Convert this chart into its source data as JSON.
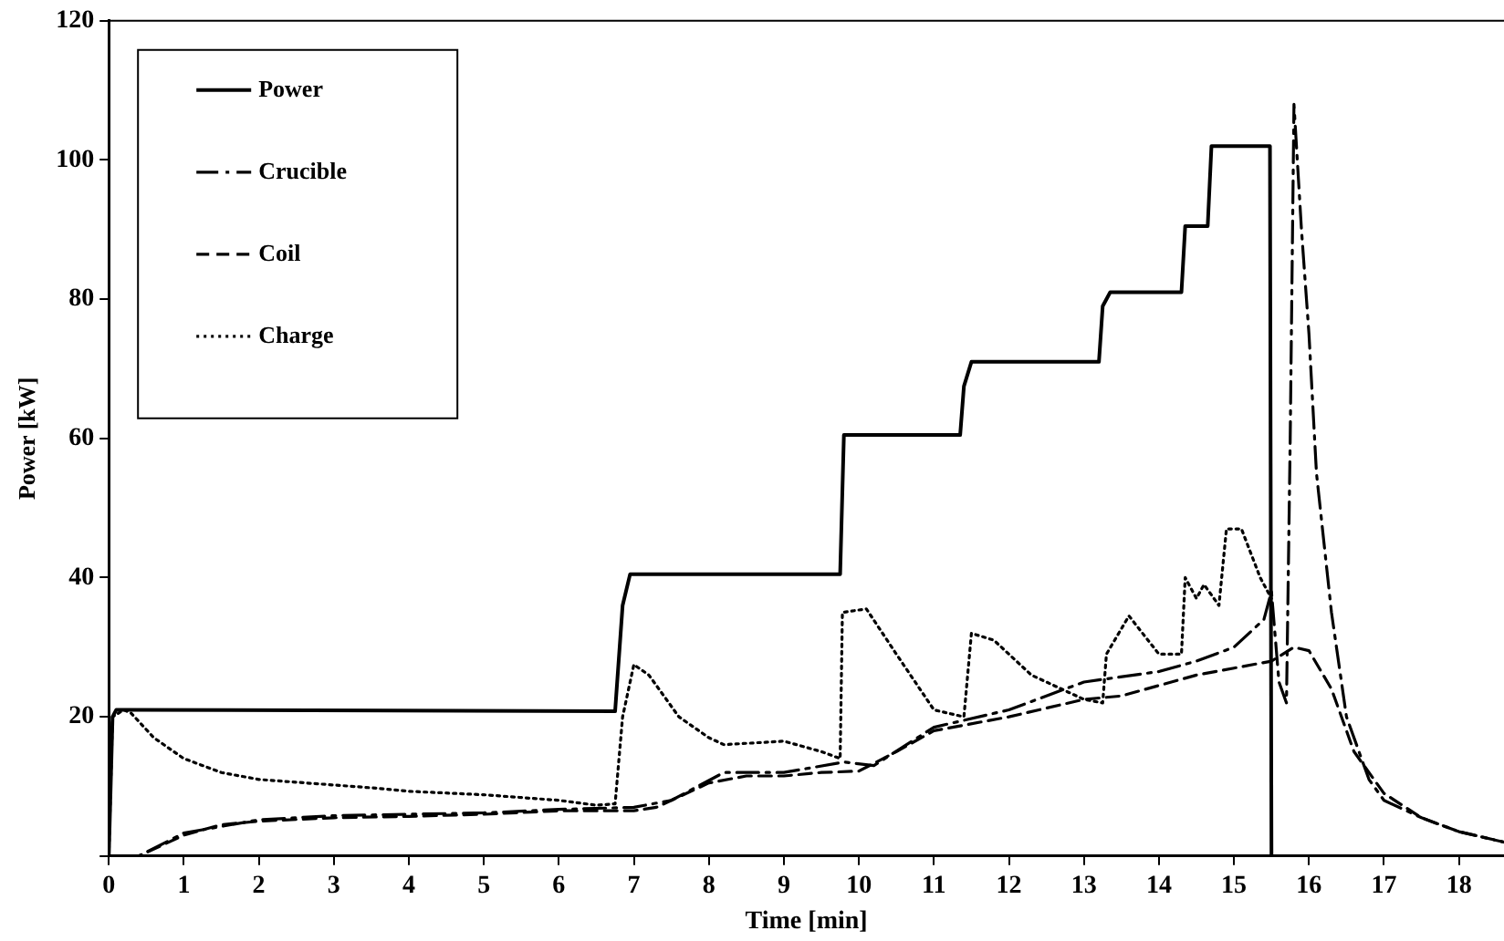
{
  "chart_data": {
    "type": "line",
    "xlabel": "Time [min]",
    "ylabel": "Power [kW]",
    "xlim": [
      0,
      18.6
    ],
    "ylim": [
      0,
      120
    ],
    "xticks": [
      0,
      1,
      2,
      3,
      4,
      5,
      6,
      7,
      8,
      9,
      10,
      11,
      12,
      13,
      14,
      15,
      16,
      17,
      18
    ],
    "yticks": [
      {
        "value": 0,
        "label": null
      },
      20,
      40,
      60,
      80,
      100,
      120
    ],
    "grid": false,
    "legend": "top left",
    "marker": "none",
    "series": [
      {
        "name": "Power",
        "color": "#000000",
        "line_style": "solid",
        "x": [
          0,
          0.05,
          0.1,
          0.25,
          6.75,
          6.85,
          6.95,
          9.75,
          9.8,
          11.35,
          11.4,
          11.5,
          13.2,
          13.25,
          13.35,
          14.3,
          14.35,
          14.65,
          14.7,
          15.48,
          15.5
        ],
        "values": [
          0,
          20,
          21,
          21,
          20.8,
          36,
          40.5,
          40.5,
          60.5,
          60.5,
          67.5,
          71,
          71,
          79,
          81,
          81,
          90.5,
          90.5,
          102,
          102,
          0
        ]
      },
      {
        "name": "Crucible",
        "color": "#000000",
        "line_style": "dashdot",
        "x": [
          0,
          0.4,
          1,
          2,
          3,
          4,
          5,
          6,
          7,
          7.5,
          8.2,
          9,
          9.8,
          10.2,
          11,
          12,
          13,
          14,
          14.5,
          15,
          15.4,
          15.5,
          15.6,
          15.7,
          15.75,
          15.8,
          15.9,
          16,
          16.1,
          16.3,
          16.5,
          16.8,
          17,
          17.5,
          18,
          18.6
        ],
        "values": [
          0,
          0,
          3.3,
          5.2,
          5.8,
          6,
          6.2,
          6.7,
          7,
          8,
          12,
          12,
          13.5,
          13,
          18.5,
          21,
          25,
          26.5,
          28,
          30,
          34,
          38,
          25,
          22,
          60,
          108,
          90,
          75,
          55,
          35,
          20,
          11,
          8,
          5.5,
          3.5,
          2
        ]
      },
      {
        "name": "Coil",
        "color": "#000000",
        "line_style": "dashed",
        "x": [
          0,
          0.4,
          1,
          1.5,
          2,
          3,
          4,
          5,
          6,
          7,
          7.3,
          8,
          8.5,
          9,
          9.5,
          10,
          10.5,
          11,
          12,
          13,
          13.5,
          14,
          14.5,
          15,
          15.5,
          15.8,
          16,
          16.3,
          16.6,
          17,
          17.5,
          18,
          18.6
        ],
        "values": [
          0,
          0,
          3,
          4.5,
          5,
          5.5,
          5.7,
          6,
          6.5,
          6.5,
          7,
          10.5,
          11.5,
          11.5,
          12,
          12.2,
          15,
          18,
          20,
          22.5,
          23,
          24.5,
          26,
          27,
          28,
          30,
          29.5,
          24,
          15,
          9,
          5.5,
          3.5,
          2
        ]
      },
      {
        "name": "Charge",
        "color": "#000000",
        "line_style": "dotted",
        "x": [
          0,
          0.05,
          0.2,
          0.3,
          0.6,
          1,
          1.5,
          2,
          3,
          3.5,
          4,
          5,
          6,
          6.5,
          6.75,
          6.85,
          7,
          7.2,
          7.6,
          8,
          8.2,
          9,
          9.5,
          9.75,
          9.78,
          10.1,
          10.5,
          11,
          11.4,
          11.5,
          11.8,
          12.3,
          13,
          13.25,
          13.3,
          13.6,
          14,
          14.3,
          14.35,
          14.5,
          14.6,
          14.8,
          14.9,
          15.1,
          15.35,
          15.5
        ],
        "values": [
          0,
          20,
          21,
          20.5,
          17,
          14,
          12,
          11,
          10.2,
          9.8,
          9.3,
          8.8,
          8,
          7.3,
          7.5,
          20,
          27.5,
          26,
          20,
          17,
          16,
          16.5,
          15,
          14,
          35,
          35.5,
          29,
          21,
          20,
          32,
          31,
          26,
          22.5,
          22,
          29,
          34.5,
          29,
          29,
          40,
          37,
          39,
          36,
          47,
          47,
          40,
          37
        ]
      }
    ]
  }
}
